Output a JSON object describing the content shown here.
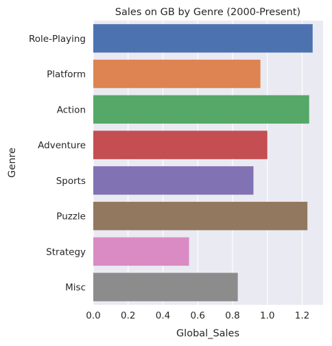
{
  "chart_data": {
    "type": "bar",
    "orientation": "horizontal",
    "title": "Sales on GB by Genre (2000-Present)",
    "xlabel": "Global_Sales",
    "ylabel": "Genre",
    "xlim": [
      0,
      1.32
    ],
    "xticks": [
      "0.0",
      "0.2",
      "0.4",
      "0.6",
      "0.8",
      "1.0",
      "1.2"
    ],
    "grid": true,
    "background": "#EAEAF2",
    "categories": [
      "Role-Playing",
      "Platform",
      "Action",
      "Adventure",
      "Sports",
      "Puzzle",
      "Strategy",
      "Misc"
    ],
    "values": [
      1.26,
      0.96,
      1.24,
      1.0,
      0.92,
      1.23,
      0.55,
      0.83
    ],
    "colors": [
      "#4C72B0",
      "#DD8452",
      "#55A868",
      "#C44E52",
      "#8172B3",
      "#937860",
      "#DA8BC3",
      "#8C8C8C"
    ]
  }
}
